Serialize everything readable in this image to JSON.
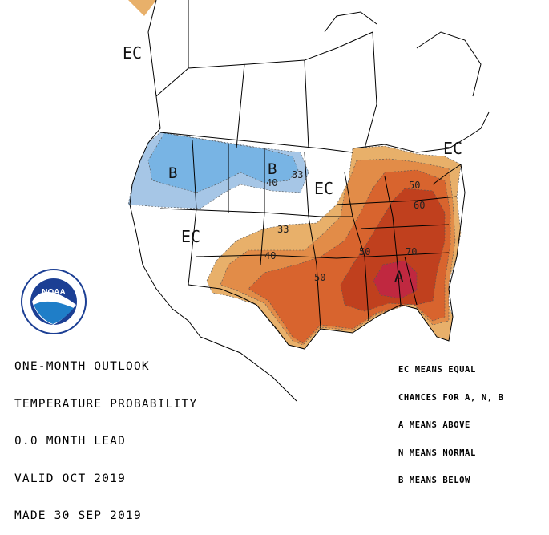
{
  "map": {
    "title_lines": [
      "ONE-MONTH OUTLOOK",
      "TEMPERATURE PROBABILITY",
      "0.0 MONTH LEAD",
      "VALID OCT 2019",
      "MADE 30 SEP 2019"
    ],
    "legend_lines": [
      "EC MEANS EQUAL",
      "CHANCES FOR A, N, B",
      "A MEANS ABOVE",
      "N MEANS NORMAL",
      "B MEANS BELOW"
    ],
    "region_labels": {
      "ec_alaska": "EC",
      "ec_northeast": "EC",
      "ec_central": "EC",
      "ec_west": "EC",
      "below_northwest": "B",
      "below_north": "B",
      "above_southeast": "A"
    },
    "contour_labels": {
      "c33_north": "33",
      "c40_north": "40",
      "c33_plains": "33",
      "c40_texas": "40",
      "c50_oklahoma": "50",
      "c50_tennessee": "50",
      "c60_virginia": "60",
      "c50_newyork": "50",
      "c70_georgia": "70"
    },
    "colors": {
      "below_33": "#a6c6e6",
      "below_40": "#78b4e4",
      "above_33": "#e8b06a",
      "above_40": "#e28c48",
      "above_50": "#d8642e",
      "above_60": "#c0401e",
      "above_70": "#c02840",
      "boundary": "#000000"
    },
    "logo": {
      "text": "NOAA",
      "ring_text": "NATIONAL OCEANIC AND ATMOSPHERIC ADMINISTRATION · U.S. DEPARTMENT OF COMMERCE"
    }
  }
}
